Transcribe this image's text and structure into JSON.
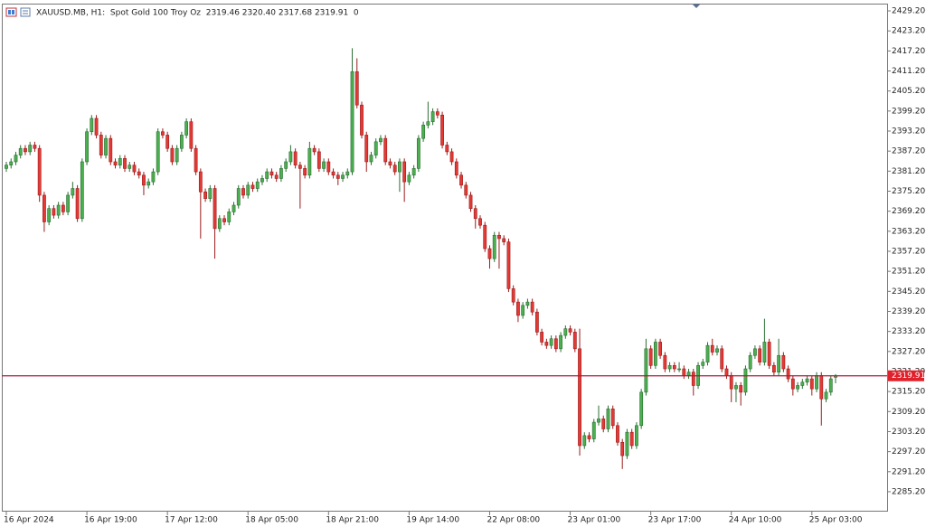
{
  "chart_data": {
    "type": "candlestick",
    "info": "XAUUSD.MB, H1:  Spot Gold 100 Troy Oz  2319.46 2320.40 2317.68 2319.91  0",
    "up_color": "#4caf50",
    "down_color": "#e53935",
    "ylim": [
      2279.5,
      2431.1
    ],
    "yticks": [
      {
        "value": 2429.2,
        "label": "2429.20"
      },
      {
        "value": 2423.2,
        "label": "2423.20"
      },
      {
        "value": 2417.2,
        "label": "2417.20"
      },
      {
        "value": 2411.2,
        "label": "2411.20"
      },
      {
        "value": 2405.2,
        "label": "2405.20"
      },
      {
        "value": 2399.2,
        "label": "2399.20"
      },
      {
        "value": 2393.2,
        "label": "2393.20"
      },
      {
        "value": 2387.2,
        "label": "2387.20"
      },
      {
        "value": 2381.2,
        "label": "2381.20"
      },
      {
        "value": 2375.2,
        "label": "2375.20"
      },
      {
        "value": 2369.2,
        "label": "2369.20"
      },
      {
        "value": 2363.2,
        "label": "2363.20"
      },
      {
        "value": 2357.2,
        "label": "2357.20"
      },
      {
        "value": 2351.2,
        "label": "2351.20"
      },
      {
        "value": 2345.2,
        "label": "2345.20"
      },
      {
        "value": 2339.2,
        "label": "2339.20"
      },
      {
        "value": 2333.2,
        "label": "2333.20"
      },
      {
        "value": 2327.2,
        "label": "2327.20"
      },
      {
        "value": 2321.2,
        "label": "2321.20"
      },
      {
        "value": 2315.2,
        "label": "2315.20"
      },
      {
        "value": 2309.2,
        "label": "2309.20"
      },
      {
        "value": 2303.2,
        "label": "2303.20"
      },
      {
        "value": 2297.2,
        "label": "2297.20"
      },
      {
        "value": 2291.2,
        "label": "2291.20"
      },
      {
        "value": 2285.2,
        "label": "2285.20"
      }
    ],
    "price_line": {
      "value": 2319.91,
      "label": "2319.91",
      "color": "#b0163a"
    },
    "categories": [
      "16 Apr 2024",
      null,
      null,
      null,
      null,
      null,
      null,
      null,
      null,
      null,
      null,
      null,
      null,
      null,
      null,
      null,
      null,
      "16 Apr 19:00",
      null,
      null,
      null,
      null,
      null,
      null,
      null,
      null,
      null,
      null,
      null,
      null,
      null,
      null,
      null,
      null,
      "17 Apr 12:00",
      null,
      null,
      null,
      null,
      null,
      null,
      null,
      null,
      null,
      null,
      null,
      null,
      null,
      null,
      null,
      null,
      "18 Apr 05:00",
      null,
      null,
      null,
      null,
      null,
      null,
      null,
      null,
      null,
      null,
      null,
      null,
      null,
      null,
      null,
      null,
      "18 Apr 21:00",
      null,
      null,
      null,
      null,
      null,
      null,
      null,
      null,
      null,
      null,
      null,
      null,
      null,
      null,
      null,
      null,
      "19 Apr 14:00",
      null,
      null,
      null,
      null,
      null,
      null,
      null,
      null,
      null,
      null,
      null,
      null,
      null,
      null,
      null,
      null,
      "22 Apr 08:00",
      null,
      null,
      null,
      null,
      null,
      null,
      null,
      null,
      null,
      null,
      null,
      null,
      null,
      null,
      null,
      null,
      "23 Apr 01:00",
      null,
      null,
      null,
      null,
      null,
      null,
      null,
      null,
      null,
      null,
      null,
      null,
      null,
      null,
      null,
      null,
      "23 Apr 17:00",
      null,
      null,
      null,
      null,
      null,
      null,
      null,
      null,
      null,
      null,
      null,
      null,
      null,
      null,
      null,
      null,
      "24 Apr 10:00",
      null,
      null,
      null,
      null,
      null,
      null,
      null,
      null,
      null,
      null,
      null,
      null,
      null,
      null,
      null,
      null,
      "25 Apr 03:00",
      null,
      null,
      null,
      null,
      null
    ],
    "ohlc": [
      [
        2382,
        2384,
        2381,
        2383
      ],
      [
        2383,
        2385,
        2382,
        2384
      ],
      [
        2384,
        2387,
        2383,
        2386
      ],
      [
        2386,
        2389,
        2385,
        2388
      ],
      [
        2388,
        2389,
        2386,
        2387
      ],
      [
        2387,
        2390,
        2386,
        2389
      ],
      [
        2389,
        2390,
        2387,
        2388
      ],
      [
        2388,
        2389,
        2372,
        2374
      ],
      [
        2374,
        2375,
        2363,
        2366
      ],
      [
        2366,
        2371,
        2365,
        2370
      ],
      [
        2370,
        2371,
        2367,
        2368
      ],
      [
        2368,
        2372,
        2367,
        2371
      ],
      [
        2371,
        2372,
        2368,
        2369
      ],
      [
        2369,
        2375,
        2368,
        2374
      ],
      [
        2374,
        2378,
        2373,
        2376
      ],
      [
        2376,
        2377,
        2366,
        2367
      ],
      [
        2367,
        2385,
        2366,
        2384
      ],
      [
        2384,
        2394,
        2383,
        2393
      ],
      [
        2393,
        2398,
        2392,
        2397
      ],
      [
        2397,
        2398,
        2391,
        2392
      ],
      [
        2392,
        2393,
        2385,
        2386
      ],
      [
        2386,
        2392,
        2385,
        2391
      ],
      [
        2391,
        2392,
        2383,
        2384
      ],
      [
        2384,
        2385,
        2382,
        2383
      ],
      [
        2383,
        2386,
        2382,
        2385
      ],
      [
        2385,
        2386,
        2381,
        2382
      ],
      [
        2382,
        2384,
        2381,
        2383
      ],
      [
        2383,
        2384,
        2380,
        2381
      ],
      [
        2381,
        2382,
        2379,
        2380
      ],
      [
        2380,
        2381,
        2374,
        2377
      ],
      [
        2377,
        2379,
        2376,
        2378
      ],
      [
        2378,
        2382,
        2377,
        2381
      ],
      [
        2381,
        2394,
        2380,
        2393
      ],
      [
        2393,
        2394,
        2391,
        2392
      ],
      [
        2392,
        2393,
        2387,
        2388
      ],
      [
        2388,
        2389,
        2383,
        2384
      ],
      [
        2384,
        2389,
        2383,
        2388
      ],
      [
        2388,
        2393,
        2387,
        2392
      ],
      [
        2392,
        2397,
        2391,
        2396
      ],
      [
        2396,
        2397,
        2387,
        2388
      ],
      [
        2388,
        2389,
        2380,
        2381
      ],
      [
        2381,
        2382,
        2361,
        2375
      ],
      [
        2375,
        2376,
        2372,
        2373
      ],
      [
        2373,
        2377,
        2372,
        2376
      ],
      [
        2376,
        2377,
        2355,
        2364
      ],
      [
        2364,
        2368,
        2363,
        2367
      ],
      [
        2367,
        2368,
        2365,
        2366
      ],
      [
        2366,
        2370,
        2365,
        2369
      ],
      [
        2369,
        2372,
        2368,
        2371
      ],
      [
        2371,
        2377,
        2370,
        2376
      ],
      [
        2376,
        2377,
        2373,
        2374
      ],
      [
        2374,
        2378,
        2373,
        2377
      ],
      [
        2377,
        2378,
        2375,
        2376
      ],
      [
        2376,
        2379,
        2375,
        2378
      ],
      [
        2378,
        2380,
        2377,
        2379
      ],
      [
        2379,
        2382,
        2378,
        2381
      ],
      [
        2381,
        2382,
        2379,
        2380
      ],
      [
        2380,
        2381,
        2378,
        2379
      ],
      [
        2379,
        2383,
        2378,
        2382
      ],
      [
        2382,
        2385,
        2381,
        2384
      ],
      [
        2384,
        2389,
        2383,
        2387
      ],
      [
        2387,
        2388,
        2382,
        2383
      ],
      [
        2383,
        2384,
        2370,
        2382
      ],
      [
        2382,
        2383,
        2379,
        2380
      ],
      [
        2380,
        2390,
        2379,
        2388
      ],
      [
        2388,
        2389,
        2386,
        2387
      ],
      [
        2387,
        2388,
        2381,
        2382
      ],
      [
        2382,
        2385,
        2381,
        2384
      ],
      [
        2384,
        2385,
        2380,
        2381
      ],
      [
        2381,
        2382,
        2379,
        2380
      ],
      [
        2380,
        2381,
        2377,
        2379
      ],
      [
        2379,
        2381,
        2378,
        2380
      ],
      [
        2380,
        2382,
        2379,
        2381
      ],
      [
        2381,
        2418,
        2380,
        2411
      ],
      [
        2411,
        2415,
        2400,
        2401
      ],
      [
        2401,
        2402,
        2391,
        2392
      ],
      [
        2392,
        2393,
        2381,
        2384
      ],
      [
        2384,
        2387,
        2383,
        2386
      ],
      [
        2386,
        2391,
        2385,
        2390
      ],
      [
        2390,
        2392,
        2389,
        2391
      ],
      [
        2391,
        2392,
        2383,
        2384
      ],
      [
        2384,
        2385,
        2382,
        2383
      ],
      [
        2383,
        2384,
        2380,
        2381
      ],
      [
        2381,
        2385,
        2375,
        2384
      ],
      [
        2384,
        2385,
        2372,
        2378
      ],
      [
        2378,
        2381,
        2377,
        2380
      ],
      [
        2380,
        2383,
        2379,
        2382
      ],
      [
        2382,
        2392,
        2381,
        2391
      ],
      [
        2391,
        2396,
        2390,
        2395
      ],
      [
        2395,
        2402,
        2394,
        2396
      ],
      [
        2396,
        2400,
        2395,
        2399
      ],
      [
        2399,
        2400,
        2397,
        2398
      ],
      [
        2398,
        2399,
        2388,
        2389
      ],
      [
        2389,
        2390,
        2386,
        2387
      ],
      [
        2387,
        2388,
        2383,
        2384
      ],
      [
        2384,
        2385,
        2379,
        2380
      ],
      [
        2380,
        2381,
        2376,
        2377
      ],
      [
        2377,
        2378,
        2373,
        2374
      ],
      [
        2374,
        2375,
        2369,
        2370
      ],
      [
        2370,
        2371,
        2364,
        2367
      ],
      [
        2367,
        2368,
        2364,
        2365
      ],
      [
        2365,
        2366,
        2357,
        2358
      ],
      [
        2358,
        2359,
        2352,
        2355
      ],
      [
        2355,
        2363,
        2354,
        2362
      ],
      [
        2362,
        2363,
        2352,
        2361
      ],
      [
        2361,
        2362,
        2359,
        2360
      ],
      [
        2360,
        2361,
        2345,
        2346
      ],
      [
        2346,
        2347,
        2341,
        2342
      ],
      [
        2342,
        2343,
        2336,
        2338
      ],
      [
        2338,
        2342,
        2337,
        2341
      ],
      [
        2341,
        2343,
        2340,
        2342
      ],
      [
        2342,
        2343,
        2338,
        2339
      ],
      [
        2339,
        2340,
        2332,
        2333
      ],
      [
        2333,
        2334,
        2329,
        2330
      ],
      [
        2330,
        2331,
        2328,
        2329
      ],
      [
        2329,
        2332,
        2328,
        2331
      ],
      [
        2331,
        2332,
        2327,
        2328
      ],
      [
        2328,
        2333,
        2327,
        2332
      ],
      [
        2332,
        2335,
        2331,
        2334
      ],
      [
        2334,
        2335,
        2332,
        2333
      ],
      [
        2333,
        2334,
        2327,
        2328
      ],
      [
        2328,
        2334,
        2296,
        2299
      ],
      [
        2299,
        2303,
        2298,
        2302
      ],
      [
        2302,
        2303,
        2300,
        2301
      ],
      [
        2301,
        2307,
        2300,
        2306
      ],
      [
        2306,
        2311,
        2305,
        2307
      ],
      [
        2307,
        2308,
        2303,
        2304
      ],
      [
        2304,
        2311,
        2303,
        2310
      ],
      [
        2310,
        2311,
        2304,
        2305
      ],
      [
        2305,
        2306,
        2299,
        2300
      ],
      [
        2300,
        2301,
        2292,
        2296
      ],
      [
        2296,
        2304,
        2295,
        2303
      ],
      [
        2303,
        2304,
        2298,
        2299
      ],
      [
        2299,
        2306,
        2298,
        2305
      ],
      [
        2305,
        2316,
        2304,
        2315
      ],
      [
        2315,
        2331,
        2314,
        2328
      ],
      [
        2328,
        2329,
        2322,
        2323
      ],
      [
        2323,
        2331,
        2322,
        2330
      ],
      [
        2330,
        2331,
        2325,
        2326
      ],
      [
        2326,
        2327,
        2321,
        2322
      ],
      [
        2322,
        2324,
        2321,
        2323
      ],
      [
        2323,
        2324,
        2321,
        2322
      ],
      [
        2322,
        2324,
        2321,
        2322
      ],
      [
        2322,
        2323,
        2319,
        2320
      ],
      [
        2320,
        2322,
        2319,
        2321
      ],
      [
        2321,
        2322,
        2314,
        2317
      ],
      [
        2317,
        2324,
        2316,
        2323
      ],
      [
        2323,
        2325,
        2322,
        2324
      ],
      [
        2324,
        2330,
        2323,
        2329
      ],
      [
        2329,
        2331,
        2326,
        2327
      ],
      [
        2327,
        2329,
        2326,
        2328
      ],
      [
        2328,
        2329,
        2321,
        2322
      ],
      [
        2322,
        2323,
        2319,
        2320
      ],
      [
        2320,
        2321,
        2312,
        2316
      ],
      [
        2316,
        2318,
        2312,
        2317
      ],
      [
        2317,
        2318,
        2311,
        2315
      ],
      [
        2315,
        2323,
        2314,
        2322
      ],
      [
        2322,
        2327,
        2321,
        2326
      ],
      [
        2326,
        2329,
        2325,
        2328
      ],
      [
        2328,
        2329,
        2323,
        2324
      ],
      [
        2324,
        2337,
        2323,
        2330
      ],
      [
        2330,
        2331,
        2322,
        2323
      ],
      [
        2323,
        2324,
        2320,
        2321
      ],
      [
        2321,
        2331,
        2320,
        2326
      ],
      [
        2326,
        2327,
        2321,
        2322
      ],
      [
        2322,
        2323,
        2318,
        2319
      ],
      [
        2319,
        2320,
        2314,
        2316
      ],
      [
        2316,
        2318,
        2315,
        2317
      ],
      [
        2317,
        2319,
        2316,
        2318
      ],
      [
        2318,
        2320,
        2317,
        2319
      ],
      [
        2319,
        2320,
        2314,
        2316
      ],
      [
        2316,
        2321,
        2315,
        2320
      ],
      [
        2320,
        2321,
        2305,
        2313
      ],
      [
        2313,
        2316,
        2312,
        2315
      ],
      [
        2315,
        2320,
        2314,
        2319
      ],
      [
        2319.46,
        2320.4,
        2317.68,
        2319.91
      ]
    ]
  }
}
